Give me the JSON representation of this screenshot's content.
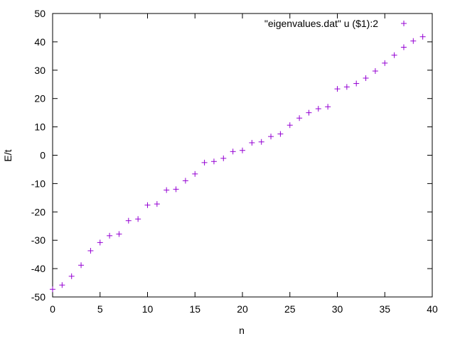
{
  "chart_data": {
    "type": "scatter",
    "title": "",
    "xlabel": "n",
    "ylabel": "E/t",
    "xlim": [
      0,
      40
    ],
    "ylim": [
      -50,
      50
    ],
    "xticks": [
      0,
      5,
      10,
      15,
      20,
      25,
      30,
      35,
      40
    ],
    "yticks": [
      -50,
      -40,
      -30,
      -20,
      -10,
      0,
      10,
      20,
      30,
      40,
      50
    ],
    "xtick_labels": [
      "0",
      "5",
      "10",
      "15",
      "20",
      "25",
      "30",
      "35",
      "40"
    ],
    "ytick_labels": [
      "-50",
      "-40",
      "-30",
      "-20",
      "-10",
      "0",
      "10",
      "20",
      "30",
      "40",
      "50"
    ],
    "grid": false,
    "legend_position": "top-right",
    "marker": "plus",
    "series": [
      {
        "name": "\"eigenvalues.dat\" u ($1):2",
        "color": "#9400d3",
        "x": [
          0,
          1,
          2,
          3,
          4,
          5,
          6,
          7,
          8,
          9,
          10,
          11,
          12,
          13,
          14,
          15,
          16,
          17,
          18,
          19,
          20,
          21,
          22,
          23,
          24,
          25,
          26,
          27,
          28,
          29,
          30,
          31,
          32,
          33,
          34,
          35,
          36,
          37,
          38,
          39
        ],
        "y": [
          -47.3,
          -45.8,
          -42.7,
          -38.8,
          -33.7,
          -30.8,
          -28.4,
          -27.8,
          -23.1,
          -22.5,
          -17.6,
          -17.2,
          -12.3,
          -12.0,
          -9.0,
          -6.6,
          -2.6,
          -2.2,
          -1.1,
          1.3,
          1.7,
          4.4,
          4.7,
          6.6,
          7.5,
          10.6,
          13.1,
          15.0,
          16.4,
          17.1,
          23.4,
          24.1,
          25.3,
          27.2,
          29.7,
          32.5,
          35.3,
          38.1,
          40.3,
          41.8
        ]
      }
    ]
  }
}
